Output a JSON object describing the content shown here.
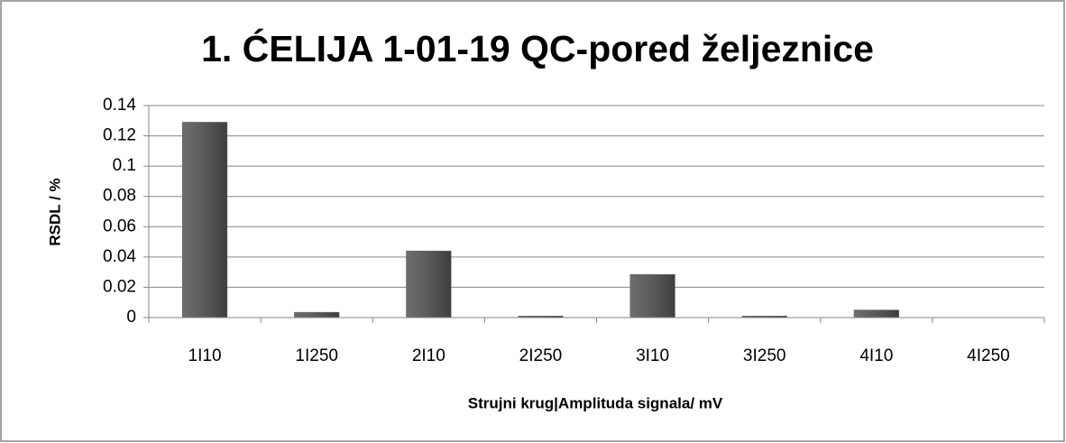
{
  "chart_data": {
    "type": "bar",
    "title": "1. ĆELIJA 1-01-19 QC-pored željeznice",
    "x_label": "Strujni krug|Amplituda signala/  mV",
    "y_label": "RSDL / %",
    "categories": [
      "1I10",
      "1I250",
      "2I10",
      "2I250",
      "3I10",
      "3I250",
      "4I10",
      "4I250"
    ],
    "values": [
      0.129,
      0.0035,
      0.044,
      0.001,
      0.0285,
      0.001,
      0.005,
      0
    ],
    "color": "#5a5a5a",
    "ylim": [
      0,
      0.14
    ],
    "yticks": [
      0,
      0.02,
      0.04,
      0.06,
      0.08,
      0.1,
      0.12,
      0.14
    ],
    "grid": true
  }
}
